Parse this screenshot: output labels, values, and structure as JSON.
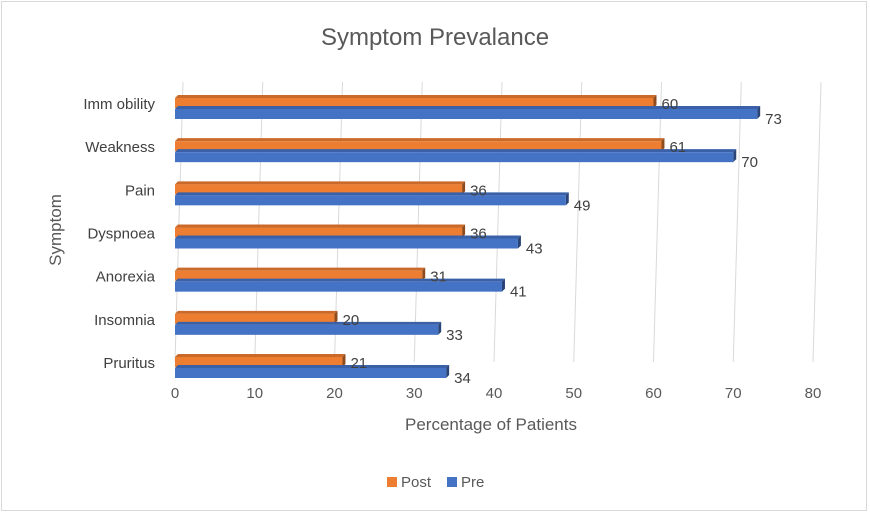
{
  "chart_data": {
    "type": "bar",
    "orientation": "horizontal",
    "title": "Symptom Prevalance",
    "xlabel": "Percentage of Patients",
    "ylabel": "Symptom",
    "categories": [
      "Immobility",
      "Weakness",
      "Pain",
      "Dyspnoea",
      "Anorexia",
      "Insomnia",
      "Pruritus"
    ],
    "category_labels": [
      "Imm obility",
      "Weakness",
      "Pain",
      "Dyspnoea",
      "Anorexia",
      "Insomnia",
      "Pruritus"
    ],
    "series": [
      {
        "name": "Post",
        "color": "#ed7d31",
        "values": [
          60,
          61,
          36,
          36,
          31,
          20,
          21
        ]
      },
      {
        "name": "Pre",
        "color": "#4472c4",
        "values": [
          73,
          70,
          49,
          43,
          41,
          33,
          34
        ]
      }
    ],
    "xlim": [
      0,
      80
    ],
    "xticks": [
      0,
      10,
      20,
      30,
      40,
      50,
      60,
      70,
      80
    ],
    "grid": true,
    "legend_position": "bottom",
    "data_labels": true
  }
}
